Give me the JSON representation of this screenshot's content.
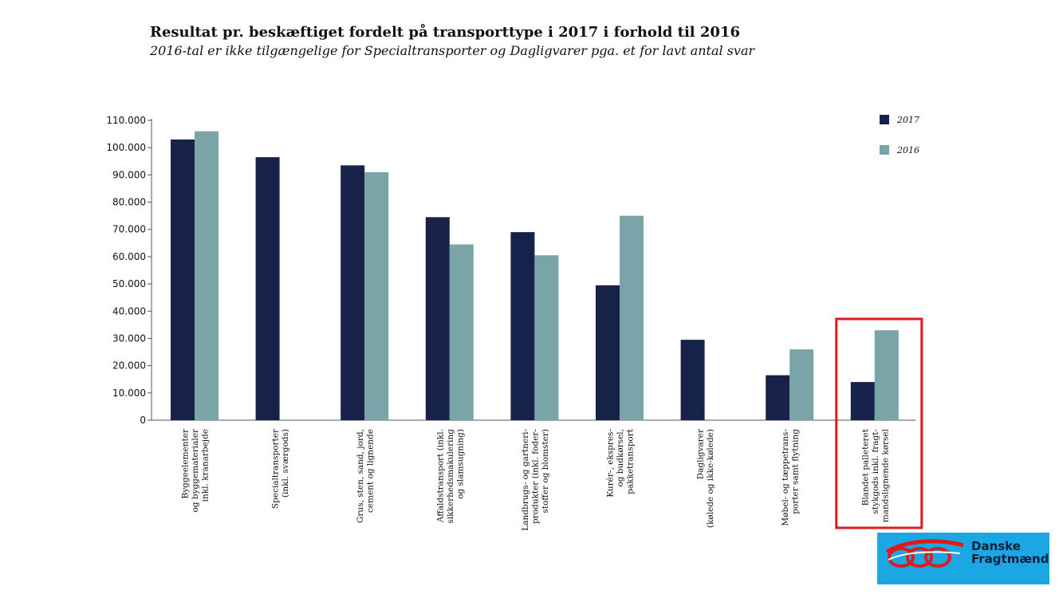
{
  "header": {
    "title": "Resultat pr. beskæftiget fordelt på transporttype i 2017 i forhold til 2016",
    "subtitle": "2016-tal er ikke tilgængelige for Specialtransporter og Dagligvarer pga. et for lavt antal svar"
  },
  "chart_data": {
    "type": "bar",
    "ylim": [
      0,
      110000
    ],
    "yticks": [
      0,
      10000,
      20000,
      30000,
      40000,
      50000,
      60000,
      70000,
      80000,
      90000,
      100000,
      110000
    ],
    "ytick_labels": [
      "0",
      "10.000",
      "20.000",
      "30.000",
      "40.000",
      "50.000",
      "60.000",
      "70.000",
      "80.000",
      "90.000",
      "100.000",
      "110.000"
    ],
    "categories": [
      [
        "Byggeelementer",
        "og byggematerialer",
        "inkl. kranarbejde"
      ],
      [
        "Specialtransporter",
        "(inkl. sværgods)"
      ],
      [
        "Grus, sten, sand, jord,",
        "cement og lignende"
      ],
      [
        "Affaldstransport (inkl.",
        "sikkerhedsmakulering",
        "og slamsugning)"
      ],
      [
        "Landbrugs- og gartneri-",
        "produkter (inkl. foder-",
        "stoffer og blomster)"
      ],
      [
        "Kurér-, ekspres-",
        "og budkørsel,",
        "pakketransport"
      ],
      [
        "Dagligvarer",
        "(kølede og ikke-kølede)"
      ],
      [
        "Møbel- og tæppetrans-",
        "porter samt flytning"
      ],
      [
        "Blandet palleteret",
        "stykgods inkl. fragt-",
        "mandslignende kørsel"
      ]
    ],
    "series": [
      {
        "name": "2017",
        "color": "#16224a",
        "values": [
          103000,
          96500,
          93500,
          74500,
          69000,
          49500,
          29500,
          16500,
          14000
        ]
      },
      {
        "name": "2016",
        "color": "#79a4a8",
        "values": [
          106000,
          null,
          91000,
          64500,
          60500,
          75000,
          null,
          26000,
          33000
        ]
      }
    ],
    "legend_position": "top-right",
    "grid": false,
    "highlight_category_index": 8,
    "highlight_color": "#e0191c"
  },
  "logo": {
    "line1": "Danske",
    "line2": "Fragtmænd",
    "background": "#1aa7e3",
    "icon": "red-swoosh-logo-icon"
  }
}
